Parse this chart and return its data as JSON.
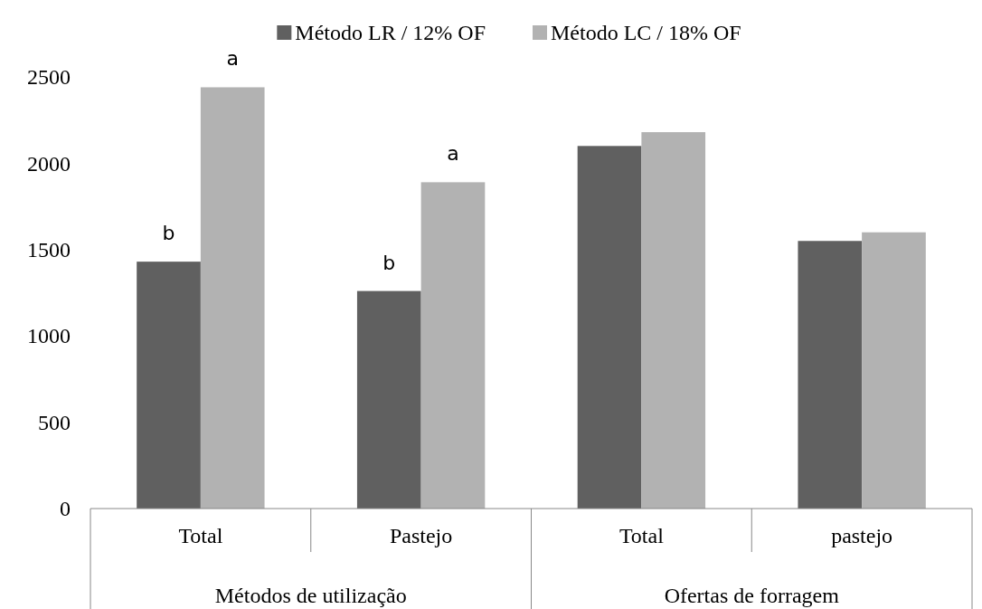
{
  "chart_data": {
    "type": "bar",
    "categories": [
      "Total",
      "Pastejo",
      "Total",
      "pastejo"
    ],
    "series": [
      {
        "name": "Método LR / 12% OF",
        "color": "#606060",
        "values": [
          1430,
          1260,
          2100,
          1550
        ],
        "value_labels": [
          "b",
          "b",
          null,
          null
        ]
      },
      {
        "name": "Método LC / 18% OF",
        "color": "#b2b2b2",
        "values": [
          2440,
          1890,
          2180,
          1600
        ],
        "value_labels": [
          "a",
          "a",
          null,
          null
        ]
      }
    ],
    "ylim": [
      0,
      2500
    ],
    "yticks": [
      0,
      500,
      1000,
      1500,
      2000,
      2500
    ],
    "grid": false,
    "legend": "top",
    "annotations": [
      "Métodos de utilização",
      "Ofertas de forragem"
    ]
  }
}
